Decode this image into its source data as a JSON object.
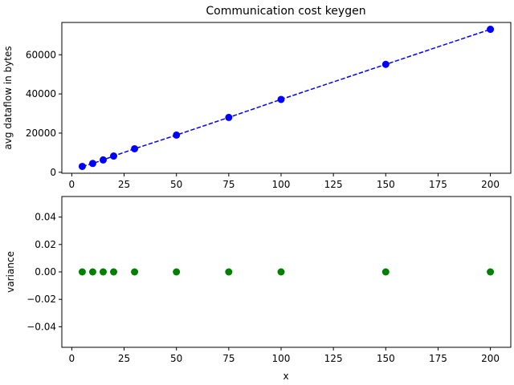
{
  "chart_data": [
    {
      "type": "line",
      "title": "Communication cost keygen",
      "xlabel": "",
      "ylabel": "avg dataflow in bytes",
      "xlim": [
        -4.75,
        209.75
      ],
      "ylim": [
        -500,
        76500
      ],
      "xticks": [
        "0",
        "25",
        "50",
        "75",
        "100",
        "125",
        "150",
        "175",
        "200"
      ],
      "yticks": [
        "0",
        "20000",
        "40000",
        "60000"
      ],
      "grid": false,
      "series": [
        {
          "color": "#0000ff",
          "line_style": "dashed",
          "marker": "circle",
          "x": [
            5,
            10,
            15,
            20,
            30,
            50,
            75,
            100,
            150,
            200
          ],
          "y": [
            3000,
            4500,
            6300,
            8300,
            12000,
            19000,
            28000,
            37200,
            55100,
            73000
          ]
        }
      ]
    },
    {
      "type": "scatter",
      "title": "",
      "xlabel": "x",
      "ylabel": "variance",
      "xlim": [
        -4.75,
        209.75
      ],
      "ylim": [
        -0.055,
        0.055
      ],
      "xticks": [
        "0",
        "25",
        "50",
        "75",
        "100",
        "125",
        "150",
        "175",
        "200"
      ],
      "yticks": [
        "−0.04",
        "−0.02",
        "0.00",
        "0.02",
        "0.04"
      ],
      "grid": false,
      "series": [
        {
          "color": "#008000",
          "marker": "circle",
          "x": [
            5,
            10,
            15,
            20,
            30,
            50,
            75,
            100,
            150,
            200
          ],
          "y": [
            0,
            0,
            0,
            0,
            0,
            0,
            0,
            0,
            0,
            0
          ]
        }
      ]
    }
  ]
}
